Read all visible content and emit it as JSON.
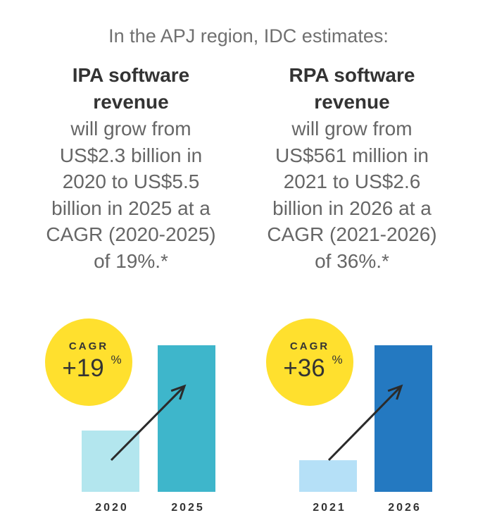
{
  "intro": "In the APJ region, IDC estimates:",
  "columns": [
    {
      "title": "IPA software\nrevenue",
      "body": "will grow from\nUS$2.3 billion in\n2020 to US$5.5\nbillion in 2025 at a\nCAGR (2020-2025)\nof 19%.*"
    },
    {
      "title": "RPA software\nrevenue",
      "body": "will grow from\nUS$561 million in\n2021 to US$2.6\nbillion in 2026 at a\nCAGR (2021-2026)\nof 36%.*"
    }
  ],
  "chart_data": [
    {
      "type": "bar",
      "title": "IPA software revenue",
      "categories": [
        "2020",
        "2025"
      ],
      "values": [
        2.3,
        5.5
      ],
      "unit": "US$ billion",
      "ylim": [
        0,
        5.5
      ],
      "colors": [
        "#b3e6ee",
        "#3eb6cb"
      ],
      "cagr_label": "CAGR",
      "cagr_value": "+19",
      "cagr_unit": "%",
      "badge_color": "#ffe02e"
    },
    {
      "type": "bar",
      "title": "RPA software revenue",
      "categories": [
        "2021",
        "2026"
      ],
      "values": [
        0.561,
        2.6
      ],
      "unit": "US$ billion",
      "ylim": [
        0,
        2.6
      ],
      "colors": [
        "#b5e0f7",
        "#2479c1"
      ],
      "cagr_label": "CAGR",
      "cagr_value": "+36",
      "cagr_unit": "%",
      "badge_color": "#ffe02e"
    }
  ]
}
